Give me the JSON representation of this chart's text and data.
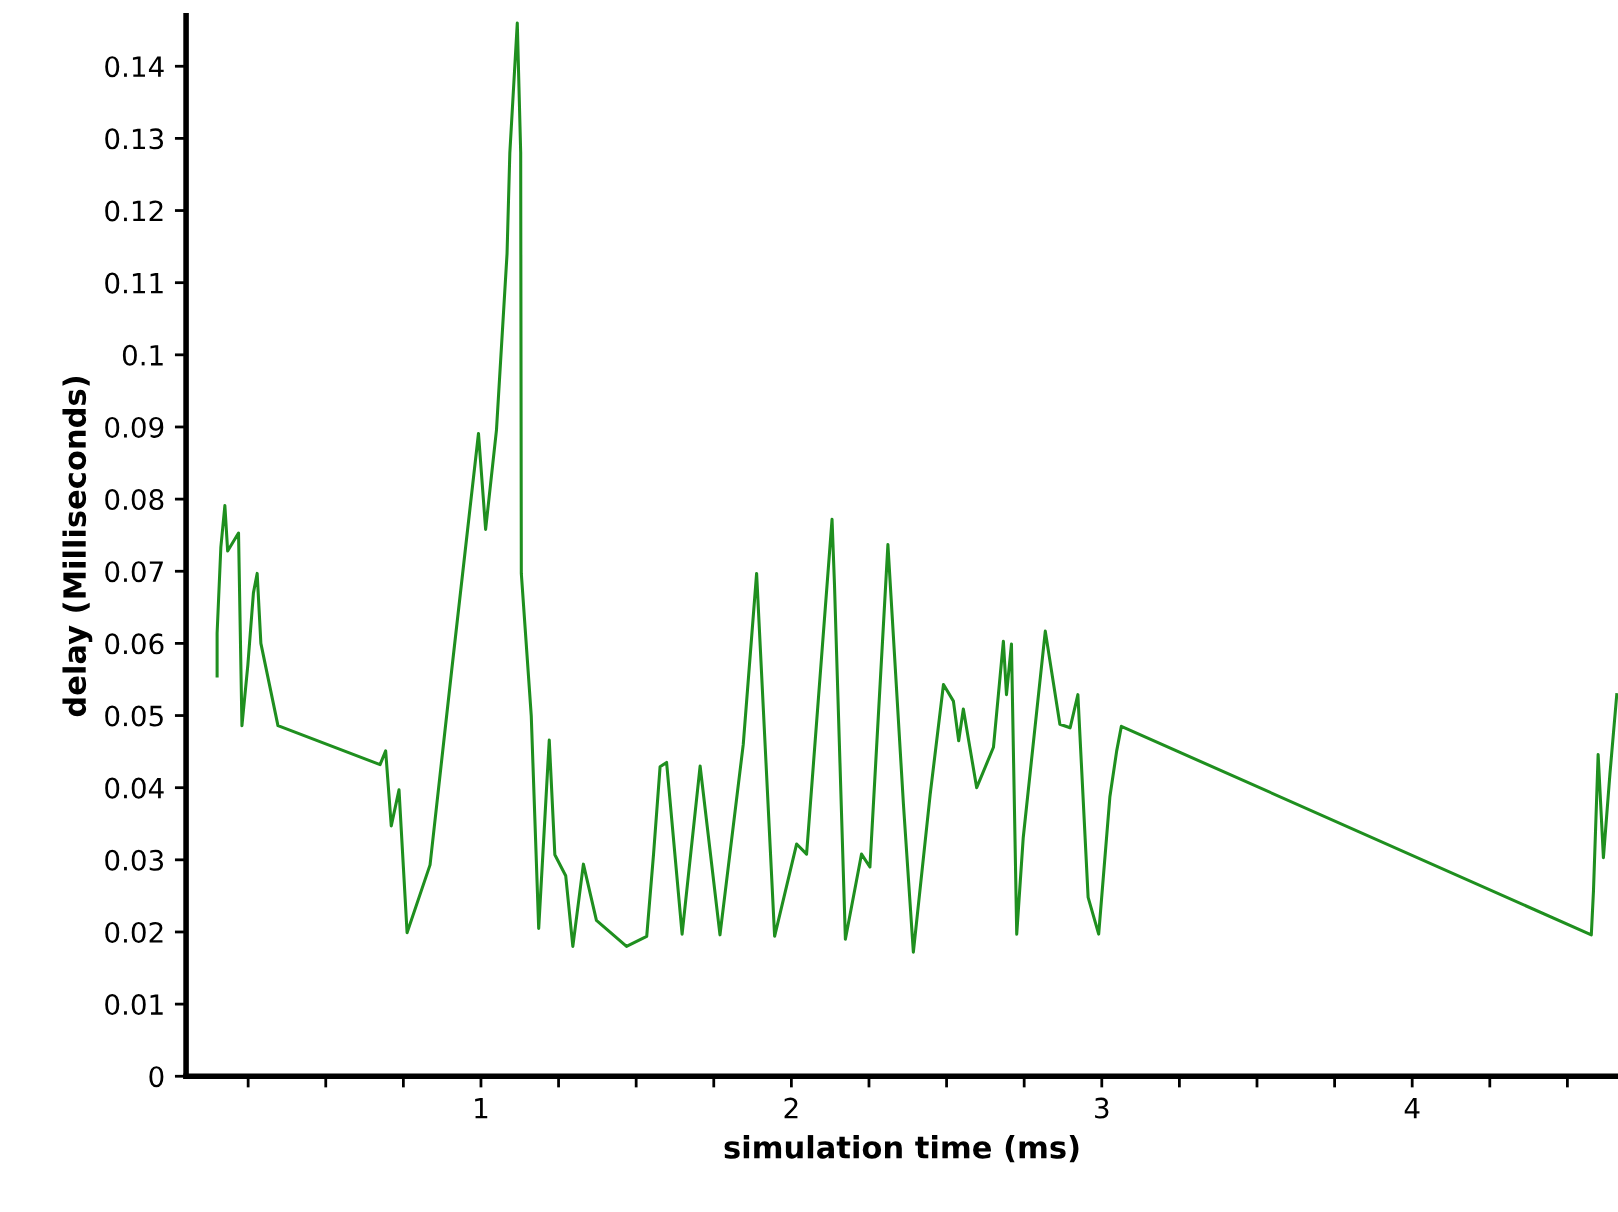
{
  "chart_data": {
    "type": "line",
    "xlabel": "simulation time (ms)",
    "ylabel": "delay (Milliseconds)",
    "xlim": [
      0.05,
      4.663
    ],
    "ylim": [
      0,
      0.147
    ],
    "xticks": [
      {
        "value": 0.25,
        "label": null
      },
      {
        "value": 0.5,
        "label": null
      },
      {
        "value": 0.75,
        "label": null
      },
      1,
      {
        "value": 1.25,
        "label": null
      },
      {
        "value": 1.5,
        "label": null
      },
      {
        "value": 1.75,
        "label": null
      },
      2,
      {
        "value": 2.25,
        "label": null
      },
      {
        "value": 2.5,
        "label": null
      },
      {
        "value": 2.75,
        "label": null
      },
      3,
      {
        "value": 3.25,
        "label": null
      },
      {
        "value": 3.5,
        "label": null
      },
      {
        "value": 3.75,
        "label": null
      },
      4,
      {
        "value": 4.25,
        "label": null
      },
      {
        "value": 4.5,
        "label": null
      }
    ],
    "yticks": [
      0,
      0.01,
      0.02,
      0.03,
      0.04,
      0.05,
      0.06,
      0.07,
      0.08,
      0.09,
      0.1,
      0.11,
      0.12,
      0.13,
      0.14
    ],
    "grid": false,
    "legend": false,
    "marker": "none",
    "line_style": "solid",
    "series": [
      {
        "color": "#1f8f1f",
        "x": [
          0.15,
          0.15,
          0.162,
          0.175,
          0.184,
          0.219,
          0.23,
          0.249,
          0.267,
          0.279,
          0.291,
          0.346,
          0.675,
          0.693,
          0.711,
          0.736,
          0.762,
          0.836,
          0.905,
          0.962,
          0.992,
          1.015,
          1.05,
          1.084,
          1.093,
          1.117,
          1.128,
          1.13,
          1.162,
          1.186,
          1.22,
          1.238,
          1.273,
          1.296,
          1.33,
          1.372,
          1.469,
          1.534,
          1.556,
          1.577,
          1.598,
          1.648,
          1.706,
          1.77,
          1.845,
          1.888,
          1.946,
          2.017,
          2.049,
          2.131,
          2.139,
          2.174,
          2.226,
          2.253,
          2.311,
          2.361,
          2.393,
          2.447,
          2.49,
          2.522,
          2.539,
          2.554,
          2.597,
          2.651,
          2.683,
          2.693,
          2.709,
          2.726,
          2.747,
          2.818,
          2.865,
          2.898,
          2.923,
          2.956,
          2.99,
          3.026,
          3.048,
          3.063,
          4.577,
          4.584,
          4.599,
          4.616,
          4.637,
          4.659
        ],
        "values": [
          0.0555,
          0.0614,
          0.0733,
          0.0791,
          0.0728,
          0.0753,
          0.0486,
          0.057,
          0.067,
          0.0697,
          0.06,
          0.0486,
          0.0432,
          0.0451,
          0.0347,
          0.0397,
          0.0199,
          0.0293,
          0.056,
          0.0777,
          0.0891,
          0.0758,
          0.0896,
          0.114,
          0.128,
          0.146,
          0.128,
          0.0697,
          0.05,
          0.0205,
          0.0466,
          0.0307,
          0.0278,
          0.018,
          0.0294,
          0.0216,
          0.018,
          0.0194,
          0.0308,
          0.0429,
          0.0435,
          0.0197,
          0.043,
          0.0196,
          0.046,
          0.0697,
          0.0194,
          0.0322,
          0.0308,
          0.0772,
          0.068,
          0.019,
          0.0308,
          0.029,
          0.0737,
          0.0377,
          0.0172,
          0.039,
          0.0543,
          0.052,
          0.0465,
          0.0509,
          0.04,
          0.0456,
          0.0603,
          0.0529,
          0.0599,
          0.0197,
          0.0331,
          0.0617,
          0.0488,
          0.0483,
          0.0529,
          0.0248,
          0.0197,
          0.0387,
          0.0451,
          0.0485,
          0.0196,
          0.0257,
          0.0446,
          0.0303,
          0.0419,
          0.0529
        ]
      }
    ]
  }
}
